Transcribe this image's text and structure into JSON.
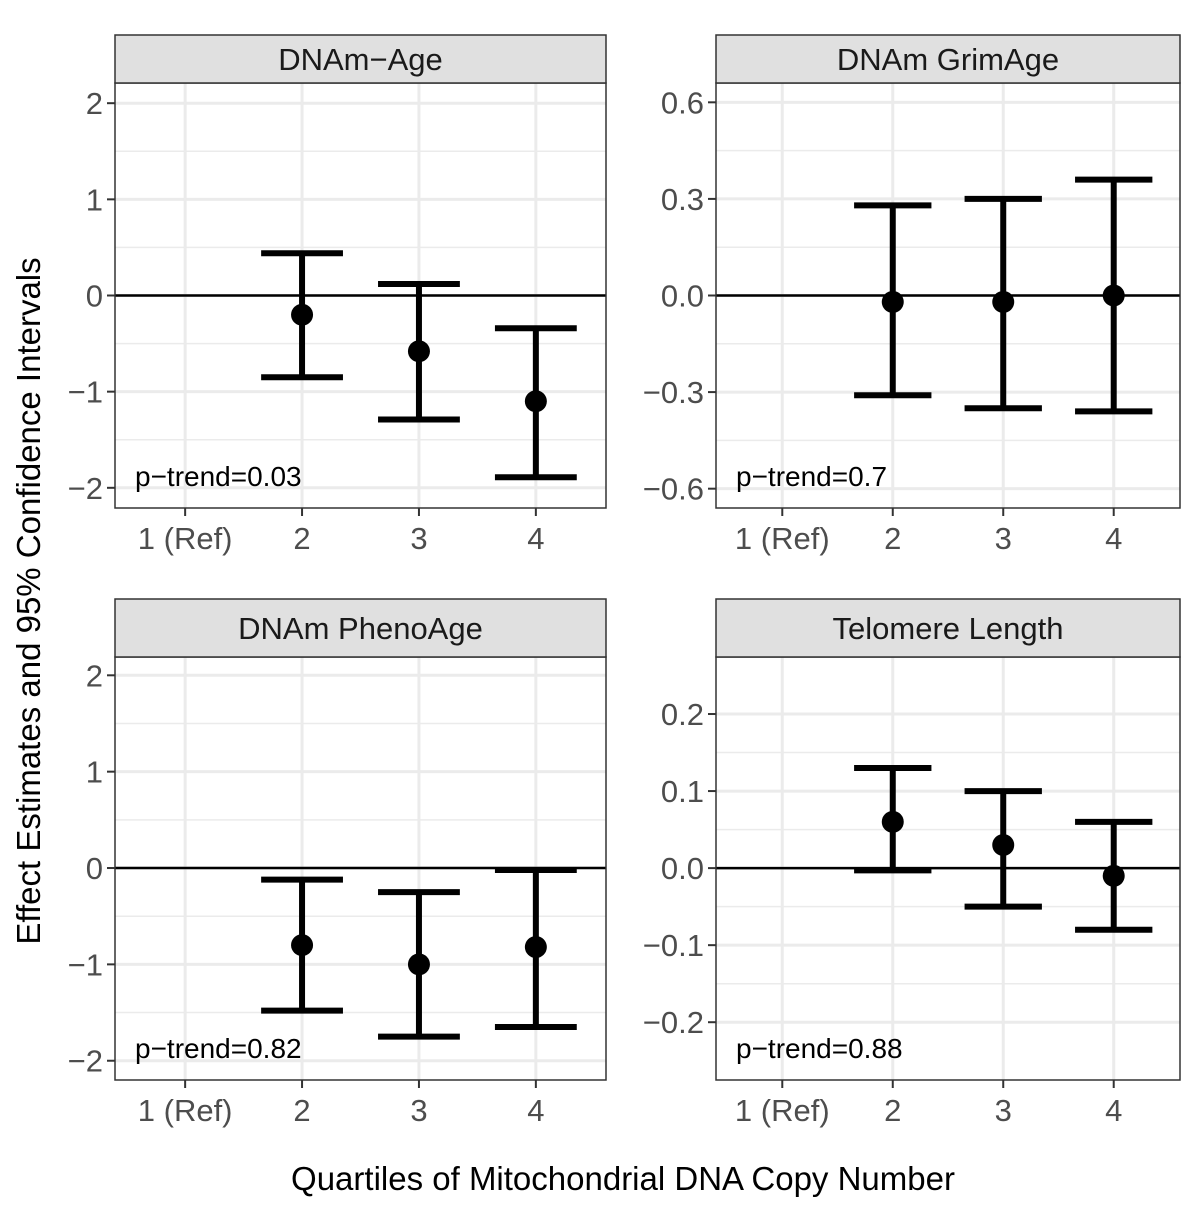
{
  "chart_data": {
    "type": "errorbar-facet",
    "ylabel": "Effect Estimates and 95% Confidence Intervals",
    "xlabel": "Quartiles of Mitochondrial DNA Copy Number",
    "categories": [
      "1 (Ref)",
      "2",
      "3",
      "4"
    ],
    "grid": true,
    "reference_line": 0,
    "colors": {
      "strip_bg": "#e0e0e0",
      "grid": "#ebebeb",
      "marks": "#000000",
      "tick_text": "#4d4d4d"
    },
    "panels": [
      {
        "title": "DNAm−Age",
        "annotation": "p−trend=0.03",
        "ylim": [
          -2.21,
          2.21
        ],
        "yticks": [
          -2,
          -1,
          0,
          1,
          2
        ],
        "ytick_labels": [
          "−2",
          "−1",
          "0",
          "1",
          "2"
        ],
        "points": [
          {
            "category": "2",
            "estimate": -0.2,
            "lower": -0.85,
            "upper": 0.44
          },
          {
            "category": "3",
            "estimate": -0.58,
            "lower": -1.29,
            "upper": 0.12
          },
          {
            "category": "4",
            "estimate": -1.1,
            "lower": -1.89,
            "upper": -0.34
          }
        ]
      },
      {
        "title": "DNAm GrimAge",
        "annotation": "p−trend=0.7",
        "ylim": [
          -0.66,
          0.66
        ],
        "yticks": [
          -0.6,
          -0.3,
          0,
          0.3,
          0.6
        ],
        "ytick_labels": [
          "−0.6",
          "−0.3",
          "0.0",
          "0.3",
          "0.6"
        ],
        "points": [
          {
            "category": "2",
            "estimate": -0.02,
            "lower": -0.31,
            "upper": 0.28
          },
          {
            "category": "3",
            "estimate": -0.02,
            "lower": -0.35,
            "upper": 0.3
          },
          {
            "category": "4",
            "estimate": 0.0,
            "lower": -0.36,
            "upper": 0.36
          }
        ]
      },
      {
        "title": "DNAm PhenoAge",
        "annotation": "p−trend=0.82",
        "ylim": [
          -2.2,
          2.19
        ],
        "yticks": [
          -2,
          -1,
          0,
          1,
          2
        ],
        "ytick_labels": [
          "−2",
          "−1",
          "0",
          "1",
          "2"
        ],
        "points": [
          {
            "category": "2",
            "estimate": -0.8,
            "lower": -1.48,
            "upper": -0.12
          },
          {
            "category": "3",
            "estimate": -1.0,
            "lower": -1.75,
            "upper": -0.25
          },
          {
            "category": "4",
            "estimate": -0.82,
            "lower": -1.65,
            "upper": -0.02
          }
        ]
      },
      {
        "title": "Telomere Length",
        "annotation": "p−trend=0.88",
        "ylim": [
          -0.275,
          0.274
        ],
        "yticks": [
          -0.2,
          -0.1,
          0,
          0.1,
          0.2
        ],
        "ytick_labels": [
          "−0.2",
          "−0.1",
          "0.0",
          "0.1",
          "0.2"
        ],
        "points": [
          {
            "category": "2",
            "estimate": 0.06,
            "lower": -0.003,
            "upper": 0.13
          },
          {
            "category": "3",
            "estimate": 0.03,
            "lower": -0.05,
            "upper": 0.1
          },
          {
            "category": "4",
            "estimate": -0.01,
            "lower": -0.08,
            "upper": 0.06
          }
        ]
      }
    ]
  }
}
